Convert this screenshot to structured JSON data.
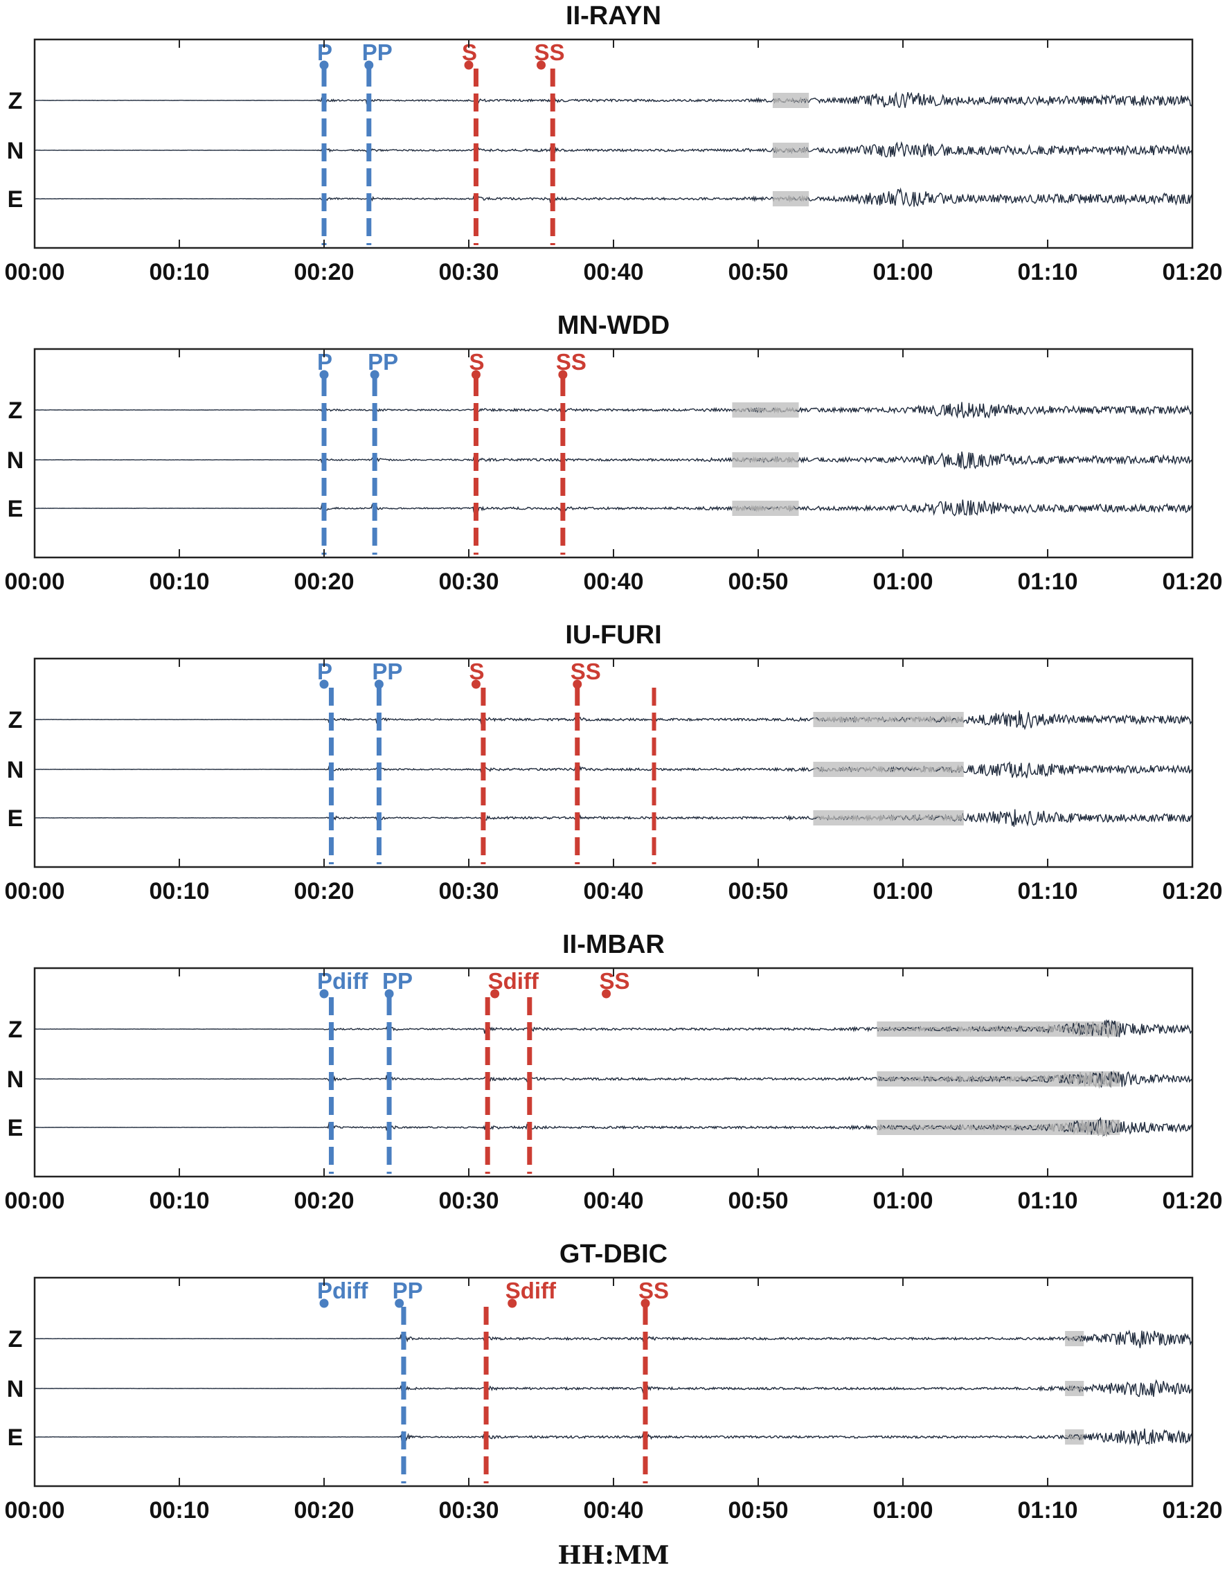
{
  "chart_data": {
    "type": "line",
    "xlabel": "HH:MM",
    "xlim_minutes": [
      0,
      80
    ],
    "xticks": [
      "00:00",
      "00:10",
      "00:20",
      "00:30",
      "00:40",
      "00:50",
      "01:00",
      "01:10",
      "01:20"
    ],
    "xtick_minutes": [
      0,
      10,
      20,
      30,
      40,
      50,
      60,
      70,
      80
    ],
    "components": [
      "Z",
      "N",
      "E"
    ],
    "colors": {
      "p_phase": "#4a7fc1",
      "s_phase": "#cc3d33",
      "trace": "#1f2a3c",
      "highlight_fill": "#cccccc",
      "highlight_trace": "#a9a9a9",
      "axes": "#222222"
    },
    "panels": [
      {
        "station": "II-RAYN",
        "phases": [
          {
            "name": "P",
            "type": "P",
            "label_min": 20.0,
            "line_min": 20.0
          },
          {
            "name": "PP",
            "type": "P",
            "label_min": 23.1,
            "line_min": 23.1
          },
          {
            "name": "S",
            "type": "S",
            "label_min": 30.0,
            "line_min": 30.5
          },
          {
            "name": "SS",
            "type": "S",
            "label_min": 35.0,
            "line_min": 35.8
          }
        ],
        "extra_s_lines_min": [],
        "surface_window_min": [
          51.0,
          53.5
        ],
        "surface_peak_min": 59.5
      },
      {
        "station": "MN-WDD",
        "phases": [
          {
            "name": "P",
            "type": "P",
            "label_min": 20.0,
            "line_min": 20.0
          },
          {
            "name": "PP",
            "type": "P",
            "label_min": 23.5,
            "line_min": 23.5
          },
          {
            "name": "S",
            "type": "S",
            "label_min": 30.5,
            "line_min": 30.5
          },
          {
            "name": "SS",
            "type": "S",
            "label_min": 36.5,
            "line_min": 36.5
          }
        ],
        "extra_s_lines_min": [],
        "surface_window_min": [
          48.2,
          52.8
        ],
        "surface_peak_min": 64.0
      },
      {
        "station": "IU-FURI",
        "phases": [
          {
            "name": "P",
            "type": "P",
            "label_min": 20.0,
            "line_min": 20.5
          },
          {
            "name": "PP",
            "type": "P",
            "label_min": 23.8,
            "line_min": 23.8
          },
          {
            "name": "S",
            "type": "S",
            "label_min": 30.5,
            "line_min": 31.0
          },
          {
            "name": "SS",
            "type": "S",
            "label_min": 37.5,
            "line_min": 37.5
          }
        ],
        "extra_s_lines_min": [
          42.8
        ],
        "surface_window_min": [
          53.8,
          64.2
        ],
        "surface_peak_min": 67.5
      },
      {
        "station": "II-MBAR",
        "phases": [
          {
            "name": "Pdiff",
            "type": "P",
            "label_min": 20.0,
            "line_min": 20.5
          },
          {
            "name": "PP",
            "type": "P",
            "label_min": 24.5,
            "line_min": 24.5
          },
          {
            "name": "Sdiff",
            "type": "S",
            "label_min": 31.8,
            "line_min": 31.3
          },
          {
            "name": "SS",
            "type": "S",
            "label_min": 39.5,
            "line_min": 34.2
          }
        ],
        "extra_s_lines_min": [],
        "surface_window_min": [
          58.2,
          75.0
        ],
        "surface_peak_min": 73.5
      },
      {
        "station": "GT-DBIC",
        "phases": [
          {
            "name": "Pdiff",
            "type": "P",
            "label_min": 20.0,
            "line_min": 25.5
          },
          {
            "name": "PP",
            "type": "P",
            "label_min": 25.2,
            "line_min": 25.5
          },
          {
            "name": "Sdiff",
            "type": "S",
            "label_min": 33.0,
            "line_min": 31.2
          },
          {
            "name": "SS",
            "type": "S",
            "label_min": 42.2,
            "line_min": 42.2
          }
        ],
        "extra_s_lines_min": [],
        "surface_window_min": [
          71.2,
          72.5
        ],
        "surface_peak_min": 76.0
      }
    ]
  }
}
